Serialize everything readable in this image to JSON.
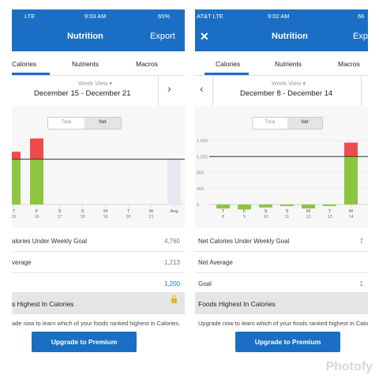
{
  "panel_a": {
    "status": {
      "carrier": "LTE",
      "time": "9:03 AM",
      "battery": "65%"
    },
    "nav": {
      "title": "Nutrition",
      "right": "Export"
    },
    "tabs": [
      "Calories",
      "Nutrients",
      "Macros"
    ],
    "week_view": "Week View",
    "date_range": "December 15 - December 21",
    "toggle": {
      "total": "Total",
      "net": "Net"
    },
    "rows": [
      {
        "label": "alories Under Weekly Goal",
        "value": "4,760"
      },
      {
        "label": "verage",
        "value": "1,213"
      },
      {
        "label": "",
        "value": "1,200"
      }
    ],
    "section_title": "s Highest In Calories",
    "upgrade_text": "ade now to learn which of your foods ranked highest in Calories.",
    "button": "Upgrade to Premium",
    "chart_data": {
      "type": "bar",
      "categories": [
        "T 15",
        "F 16",
        "S 17",
        "S 18",
        "M 19",
        "T 20",
        "W 21",
        "Avg"
      ],
      "day_letters": [
        "T",
        "F",
        "S",
        "S",
        "M",
        "T",
        "W",
        "Avg"
      ],
      "day_numbers": [
        "15",
        "16",
        "17",
        "18",
        "19",
        "20",
        "21",
        ""
      ],
      "goal": 1200,
      "ylim": [
        0,
        1800
      ],
      "series": [
        {
          "values": [
            1200,
            1200,
            0,
            0,
            0,
            0,
            0,
            0
          ],
          "color": "#8cc63e"
        },
        {
          "values": [
            1400,
            1750,
            0,
            0,
            0,
            0,
            0,
            0
          ],
          "color": "#f04b4b"
        },
        {
          "values": [
            0,
            0,
            0,
            0,
            0,
            0,
            0,
            1213
          ],
          "color": "#e8e8ee"
        }
      ]
    }
  },
  "panel_b": {
    "status": {
      "carrier": "AT&T  LTE",
      "time": "9:02 AM",
      "battery": "66"
    },
    "nav": {
      "title": "Nutrition",
      "right": "Exp"
    },
    "tabs": [
      "Calories",
      "Nutrients",
      "Macros"
    ],
    "week_view": "Week View",
    "date_range": "December 8 - December 14",
    "toggle": {
      "total": "Total",
      "net": "Net"
    },
    "rows": [
      {
        "label": "Net Calories Under Weekly Goal",
        "value": "7"
      },
      {
        "label": "Net Average",
        "value": ""
      },
      {
        "label": "Goal",
        "value": "1"
      }
    ],
    "section_title": "Foods Highest In Calories",
    "upgrade_text": "Upgrade now to learn which of your foods ranked highest in Calories.",
    "button": "Upgrade to Premium",
    "chart_data": {
      "type": "bar",
      "categories": [
        "T 8",
        "F 9",
        "S 10",
        "S 11",
        "M 12",
        "T 13",
        "W 14"
      ],
      "day_letters": [
        "T",
        "F",
        "S",
        "S",
        "M",
        "T",
        "W"
      ],
      "day_numbers": [
        "8",
        "9",
        "10",
        "11",
        "12",
        "13",
        "14"
      ],
      "yticks": [
        "1,600",
        "1,200",
        "800",
        "400",
        "0"
      ],
      "ytick_values": [
        1600,
        1200,
        800,
        400,
        0
      ],
      "goal": 1200,
      "ylim": [
        -50,
        1700
      ],
      "series": [
        {
          "values": [
            -40,
            -50,
            -30,
            -10,
            -40,
            -10,
            1200
          ],
          "color": "#8cc63e"
        },
        {
          "values": [
            0,
            0,
            0,
            0,
            0,
            0,
            1550
          ],
          "color": "#f04b4b"
        }
      ]
    }
  },
  "watermark": "Photofy"
}
